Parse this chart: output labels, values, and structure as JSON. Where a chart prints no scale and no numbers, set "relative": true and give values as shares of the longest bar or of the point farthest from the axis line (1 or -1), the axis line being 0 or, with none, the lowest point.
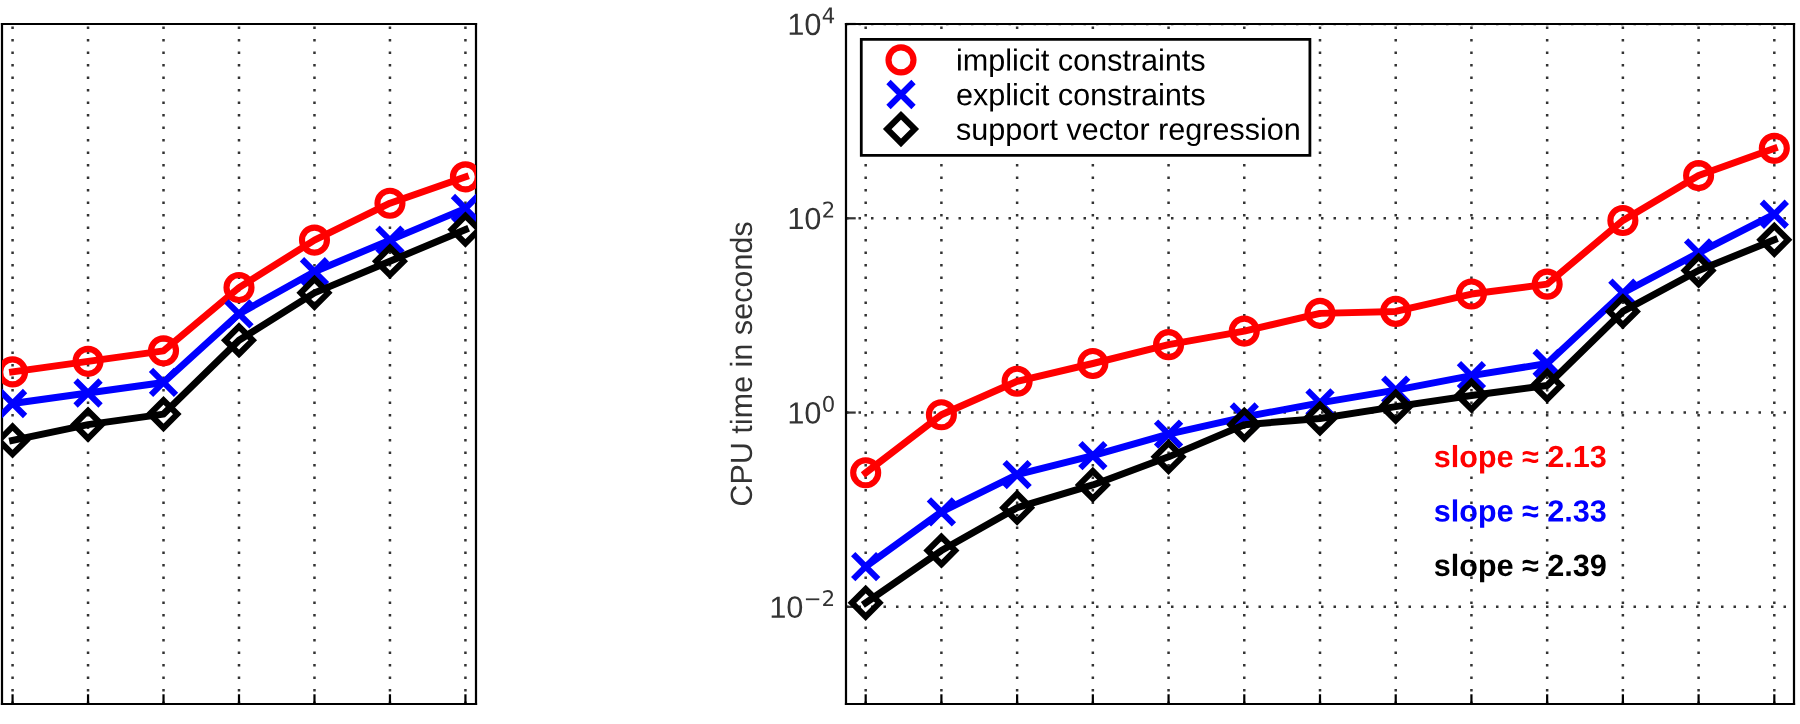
{
  "chart_data": [
    {
      "type": "line",
      "relative": true,
      "categories": [
        null,
        null,
        null,
        null,
        null,
        null,
        null
      ],
      "tick_labels": false,
      "grid": true,
      "legend": false,
      "line_style": "solid",
      "series": [
        {
          "color": "#ff0000",
          "marker": "circle",
          "values": [
            0.63,
            0.65,
            0.67,
            0.79,
            0.88,
            0.95,
            1
          ]
        },
        {
          "color": "#0000ff",
          "marker": "cross",
          "values": [
            0.57,
            0.59,
            0.61,
            0.74,
            0.82,
            0.88,
            0.94
          ]
        },
        {
          "color": "#000000",
          "marker": "diamond",
          "values": [
            0.5,
            0.53,
            0.55,
            0.69,
            0.78,
            0.84,
            0.9
          ]
        }
      ]
    },
    {
      "type": "line",
      "log": "y",
      "ylabel": "CPU time in seconds",
      "categories": [
        null,
        null,
        null,
        null,
        null,
        null,
        null,
        null,
        null,
        null,
        null,
        null,
        null
      ],
      "ylim": [
        0.001,
        10000
      ],
      "yticks": [
        {
          "value": 0.01,
          "label": "10$^{−2}$"
        },
        {
          "value": 1,
          "label": "10$^{0}$"
        },
        {
          "value": 100,
          "label": "10$^{2}$"
        },
        {
          "value": 10000,
          "label": "10$^{4}$"
        }
      ],
      "tick_labels": "y",
      "grid": true,
      "legend": "top left",
      "line_style": "solid",
      "annotations": [
        "slope ≈ 2.13",
        "slope ≈ 2.33",
        "slope ≈ 2.39"
      ],
      "series": [
        {
          "name": "implicit constraints",
          "color": "#ff0000",
          "marker": "circle",
          "values": [
            0.24,
            0.95,
            2.1,
            3.2,
            5.0,
            6.9,
            10.5,
            11,
            16.6,
            21,
            95,
            275,
            525
          ]
        },
        {
          "name": "explicit constraints",
          "color": "#0000ff",
          "marker": "cross",
          "values": [
            0.026,
            0.095,
            0.23,
            0.36,
            0.6,
            0.9,
            1.26,
            1.7,
            2.4,
            3.2,
            17,
            44,
            110
          ]
        },
        {
          "name": "support vector regression",
          "color": "#000000",
          "marker": "diamond",
          "values": [
            0.011,
            0.038,
            0.105,
            0.18,
            0.35,
            0.75,
            0.87,
            1.15,
            1.5,
            1.9,
            11,
            29,
            60
          ]
        }
      ]
    }
  ]
}
